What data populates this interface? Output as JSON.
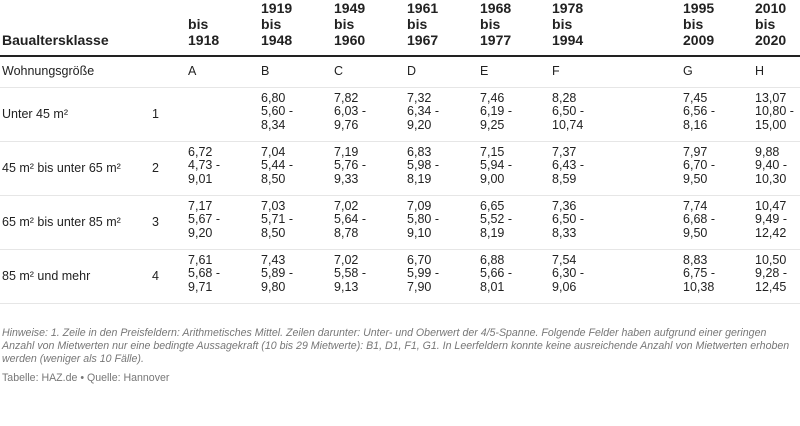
{
  "header": {
    "row_label": "Baualtersklasse",
    "columns": [
      [
        "bis",
        "1918"
      ],
      [
        "1919",
        "bis",
        "1948"
      ],
      [
        "1949",
        "bis",
        "1960"
      ],
      [
        "1961",
        "bis",
        "1967"
      ],
      [
        "1968",
        "bis",
        "1977"
      ],
      [
        "1978",
        "bis",
        "1994"
      ],
      [
        "1995",
        "bis",
        "2009"
      ],
      [
        "2010",
        "bis",
        "2020"
      ]
    ]
  },
  "subheader": {
    "label": "Wohnungsgröße",
    "letters": [
      "A",
      "B",
      "C",
      "D",
      "E",
      "F",
      "G",
      "H"
    ]
  },
  "rows": [
    {
      "label": "Unter 45 m²",
      "num": "1",
      "cells": [
        null,
        {
          "mean": "6,80",
          "low": "5,60 -",
          "high": "8,34"
        },
        {
          "mean": "7,82",
          "low": "6,03 -",
          "high": "9,76"
        },
        {
          "mean": "7,32",
          "low": "6,34 -",
          "high": "9,20"
        },
        {
          "mean": "7,46",
          "low": "6,19 -",
          "high": "9,25"
        },
        {
          "mean": "8,28",
          "low": "6,50 -",
          "high": "10,74"
        },
        {
          "mean": "7,45",
          "low": "6,56 -",
          "high": "8,16"
        },
        {
          "mean": "13,07",
          "low": "10,80 -",
          "high": "15,00"
        }
      ]
    },
    {
      "label": "45 m² bis unter 65 m²",
      "num": "2",
      "cells": [
        {
          "mean": "6,72",
          "low": "4,73 -",
          "high": "9,01"
        },
        {
          "mean": "7,04",
          "low": "5,44 -",
          "high": "8,50"
        },
        {
          "mean": "7,19",
          "low": "5,76 -",
          "high": "9,33"
        },
        {
          "mean": "6,83",
          "low": "5,98 -",
          "high": "8,19"
        },
        {
          "mean": "7,15",
          "low": "5,94 -",
          "high": "9,00"
        },
        {
          "mean": "7,37",
          "low": "6,43 -",
          "high": "8,59"
        },
        {
          "mean": "7,97",
          "low": "6,70 -",
          "high": "9,50"
        },
        {
          "mean": "9,88",
          "low": "9,40 -",
          "high": "10,30"
        }
      ]
    },
    {
      "label": "65 m² bis unter 85 m²",
      "num": "3",
      "cells": [
        {
          "mean": "7,17",
          "low": "5,67 -",
          "high": "9,20"
        },
        {
          "mean": "7,03",
          "low": "5,71 -",
          "high": "8,50"
        },
        {
          "mean": "7,02",
          "low": "5,64 -",
          "high": "8,78"
        },
        {
          "mean": "7,09",
          "low": "5,80 -",
          "high": "9,10"
        },
        {
          "mean": "6,65",
          "low": "5,52 -",
          "high": "8,19"
        },
        {
          "mean": "7,36",
          "low": "6,50 -",
          "high": "8,33"
        },
        {
          "mean": "7,74",
          "low": "6,68 -",
          "high": "9,50"
        },
        {
          "mean": "10,47",
          "low": "9,49 -",
          "high": "12,42"
        }
      ]
    },
    {
      "label": "85 m² und mehr",
      "num": "4",
      "cells": [
        {
          "mean": "7,61",
          "low": "5,68 -",
          "high": "9,71"
        },
        {
          "mean": "7,43",
          "low": "5,89 -",
          "high": "9,80"
        },
        {
          "mean": "7,02",
          "low": "5,58 -",
          "high": "9,13"
        },
        {
          "mean": "6,70",
          "low": "5,99 -",
          "high": "7,90"
        },
        {
          "mean": "6,88",
          "low": "5,66 -",
          "high": "8,01"
        },
        {
          "mean": "7,54",
          "low": "6,30 -",
          "high": "9,06"
        },
        {
          "mean": "8,83",
          "low": "6,75 -",
          "high": "10,38"
        },
        {
          "mean": "10,50",
          "low": "9,28 -",
          "high": "12,45"
        }
      ]
    }
  ],
  "notes": "Hinweise: 1. Zeile in den Preisfeldern: Arithmetisches Mittel. Zeilen darunter: Unter- und Oberwert der 4/5-Spanne. Folgende Felder haben aufgrund einer geringen Anzahl von Mietwerten nur eine bedingte Aussagekraft (10 bis 29 Mietwerte): B1, D1, F1, G1. In Leerfeldern konnte keine ausreichende Anzahl von Mietwerten erhoben werden (weniger als 10 Fälle).",
  "source": "Tabelle: HAZ.de • Quelle: Hannover"
}
